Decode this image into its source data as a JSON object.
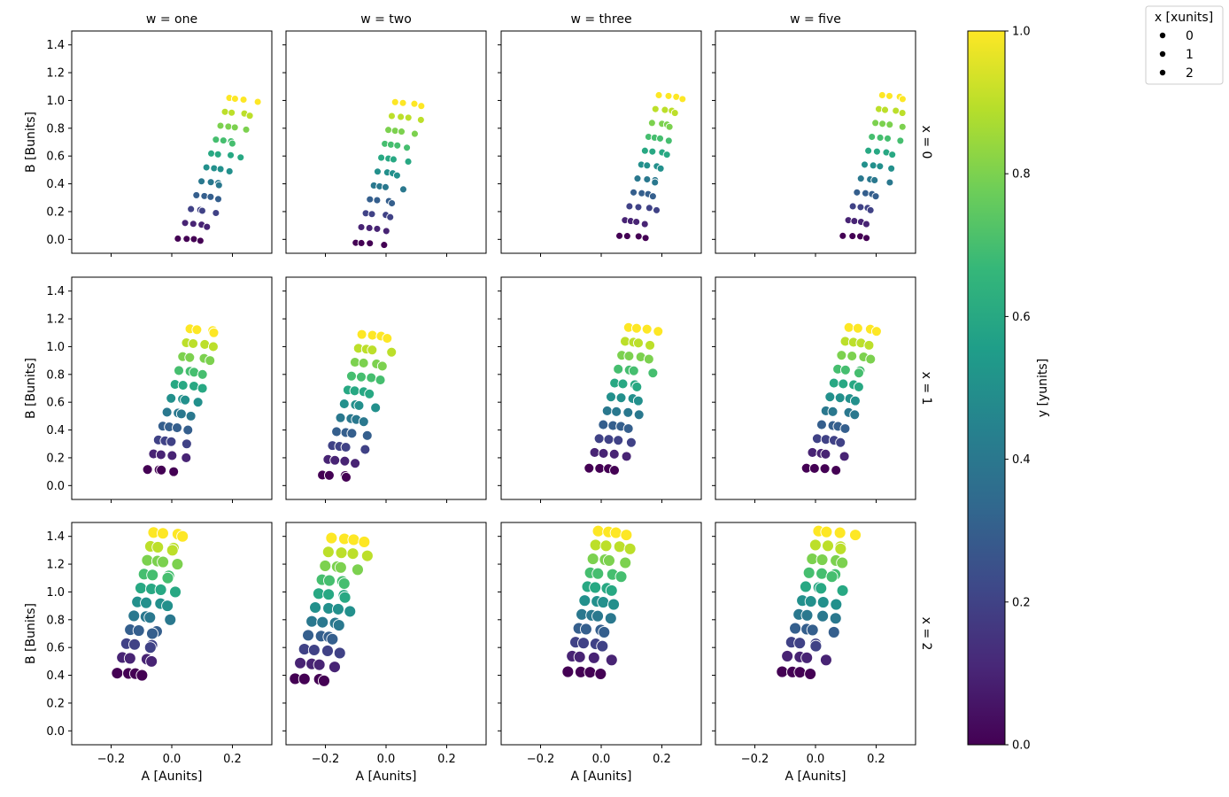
{
  "chart_data": {
    "type": "scatter",
    "layout": "facet-grid",
    "column_facet_label": "w",
    "row_facet_label": "x",
    "columns": [
      "one",
      "two",
      "three",
      "five"
    ],
    "rows": [
      "0",
      "1",
      "2"
    ],
    "column_titles": [
      "w = one",
      "w = two",
      "w = three",
      "w = five"
    ],
    "row_titles": [
      "x = 0",
      "x = 1",
      "x = 2"
    ],
    "xlabel": "A [Aunits]",
    "ylabel": "B [Bunits]",
    "xlim": [
      -0.33,
      0.33
    ],
    "ylim": [
      -0.1,
      1.5
    ],
    "xticks": [
      -0.2,
      0.0,
      0.2
    ],
    "xtick_labels": [
      "−0.2",
      "0.0",
      "0.2"
    ],
    "yticks": [
      0.0,
      0.2,
      0.4,
      0.6,
      0.8,
      1.0,
      1.2,
      1.4
    ],
    "ytick_labels": [
      "0.0",
      "0.2",
      "0.4",
      "0.6",
      "0.8",
      "1.0",
      "1.2",
      "1.4"
    ],
    "colorbar": {
      "label": "y [yunits]",
      "colormap": "viridis",
      "range": [
        0.0,
        1.0
      ],
      "ticks": [
        0.0,
        0.2,
        0.4,
        0.6,
        0.8,
        1.0
      ],
      "tick_labels": [
        "0.0",
        "0.2",
        "0.4",
        "0.6",
        "0.8",
        "1.0"
      ],
      "stops": [
        "#440154",
        "#482878",
        "#3e4989",
        "#31688e",
        "#26828e",
        "#1f9e89",
        "#35b779",
        "#6ece58",
        "#b5de2b",
        "#fde725"
      ]
    },
    "size_legend": {
      "title": "x [xunits]",
      "entries": [
        "0",
        "1",
        "2"
      ],
      "placement": "top-right"
    },
    "marker_edge_color": "#ffffff",
    "size_by_row": [
      4.0,
      5.5,
      6.5
    ],
    "hue_levels": [
      0.0,
      0.1,
      0.2,
      0.3,
      0.4,
      0.5,
      0.6,
      0.7,
      0.8,
      0.9,
      1.0
    ],
    "points_per_level": 4,
    "cells": [
      [
        {
          "base_a": 0.03,
          "base_b": 0.0,
          "slope_a": 0.13,
          "slope_b": 1.0,
          "jitter": 0.03,
          "top_a": 0.2
        },
        {
          "base_a": -0.09,
          "base_b": -0.03,
          "slope_a": 0.13,
          "slope_b": 1.0,
          "jitter": 0.03,
          "top_a": 0.04
        },
        {
          "base_a": 0.07,
          "base_b": 0.02,
          "slope_a": 0.13,
          "slope_b": 1.0,
          "jitter": 0.03,
          "top_a": 0.2
        },
        {
          "base_a": 0.1,
          "base_b": 0.02,
          "slope_a": 0.13,
          "slope_b": 1.0,
          "jitter": 0.03,
          "top_a": 0.23
        }
      ],
      [
        {
          "base_a": -0.07,
          "base_b": 0.11,
          "slope_a": 0.13,
          "slope_b": 1.0,
          "jitter": 0.035,
          "top_a": 0.07
        },
        {
          "base_a": -0.2,
          "base_b": 0.07,
          "slope_a": 0.13,
          "slope_b": 1.0,
          "jitter": 0.035,
          "top_a": -0.07
        },
        {
          "base_a": -0.03,
          "base_b": 0.12,
          "slope_a": 0.13,
          "slope_b": 1.0,
          "jitter": 0.035,
          "top_a": 0.1
        },
        {
          "base_a": -0.02,
          "base_b": 0.12,
          "slope_a": 0.13,
          "slope_b": 1.0,
          "jitter": 0.035,
          "top_a": 0.12
        }
      ],
      [
        {
          "base_a": -0.17,
          "base_b": 0.41,
          "slope_a": 0.13,
          "slope_b": 1.0,
          "jitter": 0.04,
          "top_a": -0.05
        },
        {
          "base_a": -0.29,
          "base_b": 0.37,
          "slope_a": 0.13,
          "slope_b": 1.0,
          "jitter": 0.04,
          "top_a": -0.17
        },
        {
          "base_a": -0.1,
          "base_b": 0.42,
          "slope_a": 0.13,
          "slope_b": 1.0,
          "jitter": 0.04,
          "top_a": 0.0
        },
        {
          "base_a": -0.1,
          "base_b": 0.42,
          "slope_a": 0.13,
          "slope_b": 1.0,
          "jitter": 0.04,
          "top_a": 0.02
        }
      ]
    ]
  }
}
